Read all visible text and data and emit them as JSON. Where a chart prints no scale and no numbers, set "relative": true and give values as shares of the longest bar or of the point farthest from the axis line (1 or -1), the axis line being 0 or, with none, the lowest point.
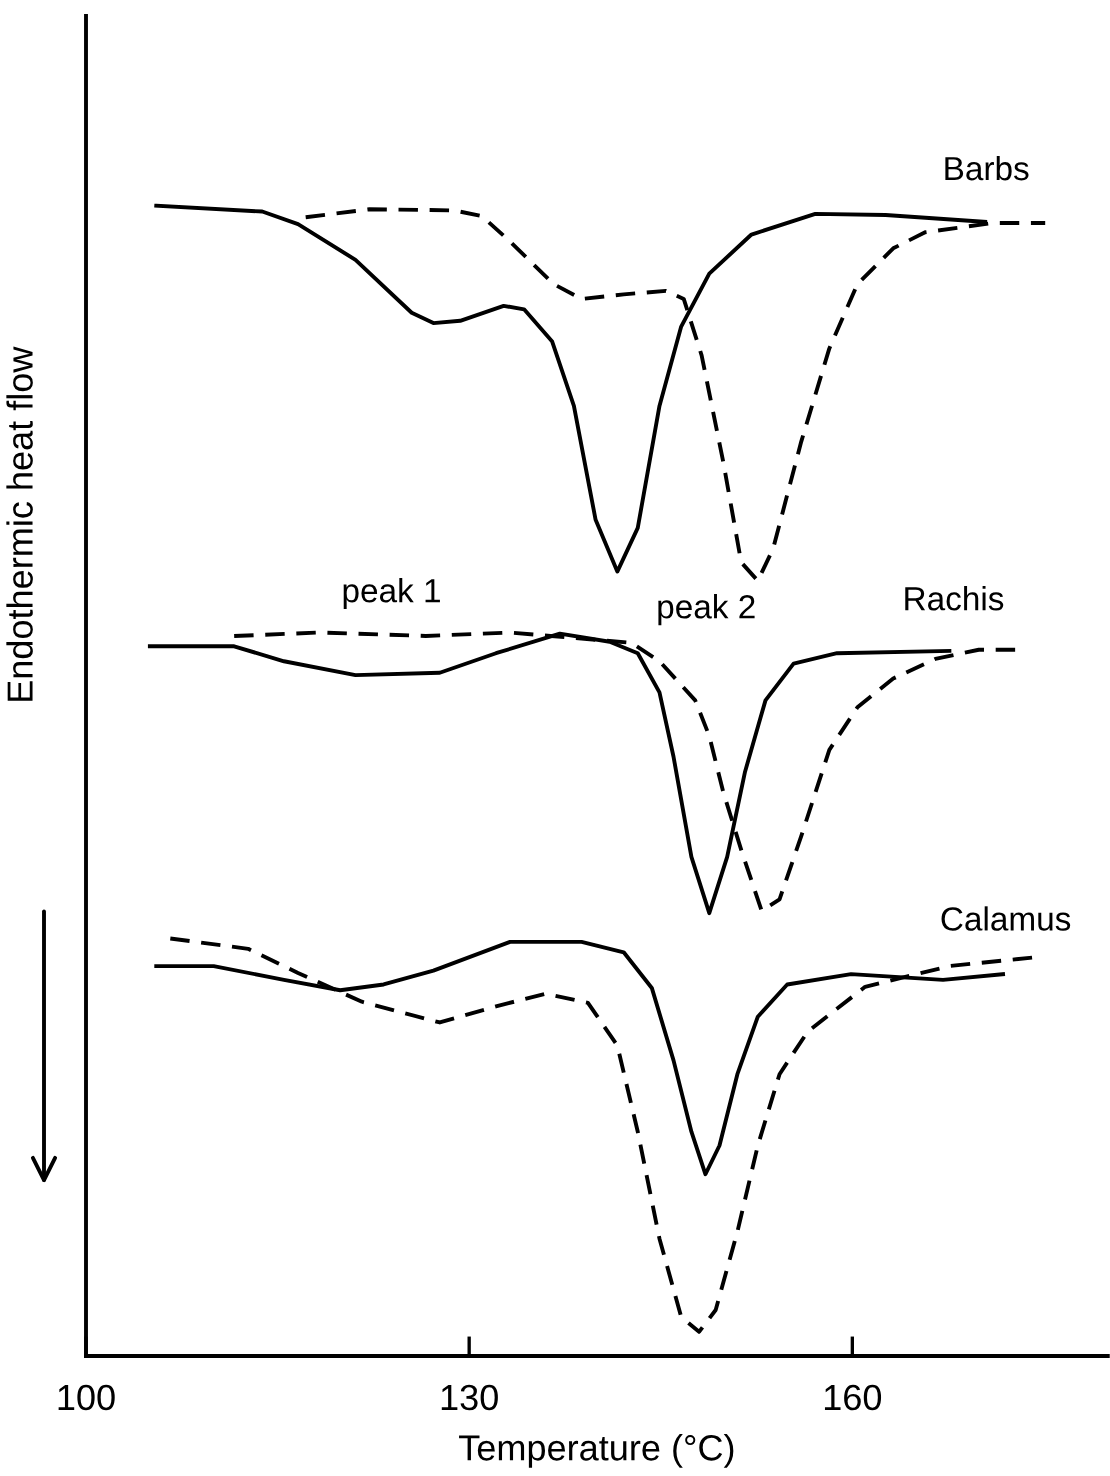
{
  "chart_data": {
    "type": "line",
    "relative": true,
    "xlabel": "Temperature (°C)",
    "ylabel": "Endothermic heat flow",
    "xlim": [
      100,
      180
    ],
    "xticks": [
      100,
      130,
      160
    ],
    "series": [
      {
        "color": "#000000",
        "line_style": "solid",
        "x": [
          105.5,
          113.8,
          116.6,
          121.1,
          125.5,
          127.2,
          129.3,
          132.7,
          134.3,
          136.5,
          138.2,
          139.9,
          141.6,
          143.2,
          144.9,
          146.6,
          148.8,
          152.1,
          157.1,
          162.6,
          170.4
        ],
        "values": [
          1.0,
          0.995,
          0.984,
          0.953,
          0.907,
          0.898,
          0.9,
          0.913,
          0.91,
          0.882,
          0.826,
          0.727,
          0.682,
          0.72,
          0.826,
          0.895,
          0.941,
          0.975,
          0.993,
          0.992,
          0.986
        ]
      },
      {
        "color": "#000000",
        "line_style": "dashed",
        "x": [
          117.2,
          122.2,
          128.8,
          131.0,
          133.2,
          136.6,
          138.8,
          142.1,
          145.4,
          146.8,
          148.2,
          149.9,
          151.3,
          152.6,
          153.8,
          156.0,
          158.2,
          160.4,
          163.2,
          165.7,
          171.0,
          175.1
        ],
        "values": [
          0.99,
          0.997,
          0.996,
          0.991,
          0.969,
          0.932,
          0.919,
          0.923,
          0.926,
          0.919,
          0.87,
          0.777,
          0.69,
          0.674,
          0.702,
          0.795,
          0.876,
          0.932,
          0.963,
          0.977,
          0.985,
          0.985
        ]
      },
      {
        "color": "#000000",
        "line_style": "solid",
        "x": [
          105.0,
          111.6,
          115.5,
          121.1,
          127.7,
          132.1,
          137.1,
          141.0,
          143.2,
          144.9,
          146.0,
          147.4,
          148.8,
          150.2,
          151.6,
          153.2,
          155.4,
          158.8,
          167.6
        ],
        "values": [
          0.617,
          0.617,
          0.604,
          0.592,
          0.594,
          0.611,
          0.628,
          0.621,
          0.611,
          0.577,
          0.521,
          0.434,
          0.385,
          0.434,
          0.508,
          0.57,
          0.602,
          0.611,
          0.613
        ]
      },
      {
        "color": "#000000",
        "line_style": "dashed",
        "x": [
          111.6,
          118.3,
          126.6,
          133.2,
          142.7,
          144.9,
          147.7,
          148.8,
          149.9,
          151.3,
          152.9,
          154.3,
          156.0,
          158.2,
          160.4,
          163.2,
          166.5,
          169.9,
          172.9
        ],
        "values": [
          0.626,
          0.629,
          0.626,
          0.629,
          0.62,
          0.604,
          0.57,
          0.539,
          0.49,
          0.44,
          0.387,
          0.397,
          0.452,
          0.527,
          0.564,
          0.589,
          0.606,
          0.614,
          0.614
        ]
      },
      {
        "color": "#000000",
        "line_style": "solid",
        "x": [
          105.5,
          110.0,
          115.5,
          119.9,
          123.3,
          127.2,
          133.2,
          138.8,
          142.1,
          144.3,
          146.0,
          147.4,
          148.5,
          149.6,
          151.0,
          152.6,
          154.9,
          159.9,
          167.1,
          171.8
        ],
        "values": [
          0.339,
          0.339,
          0.327,
          0.318,
          0.323,
          0.335,
          0.36,
          0.36,
          0.351,
          0.32,
          0.257,
          0.195,
          0.158,
          0.183,
          0.245,
          0.295,
          0.323,
          0.332,
          0.327,
          0.332
        ]
      },
      {
        "color": "#000000",
        "line_style": "dashed",
        "x": [
          106.6,
          112.7,
          116.6,
          121.6,
          127.7,
          132.1,
          136.0,
          139.3,
          141.6,
          143.2,
          144.9,
          146.6,
          148.0,
          149.3,
          151.0,
          152.6,
          154.3,
          156.5,
          161.0,
          167.6,
          174.6
        ],
        "values": [
          0.363,
          0.354,
          0.333,
          0.308,
          0.29,
          0.304,
          0.315,
          0.307,
          0.27,
          0.195,
          0.102,
          0.034,
          0.021,
          0.04,
          0.108,
          0.183,
          0.245,
          0.282,
          0.321,
          0.339,
          0.347
        ]
      }
    ],
    "annotations": [
      "Barbs",
      "peak 1",
      "peak 2",
      "Rachis",
      "Calamus"
    ]
  }
}
